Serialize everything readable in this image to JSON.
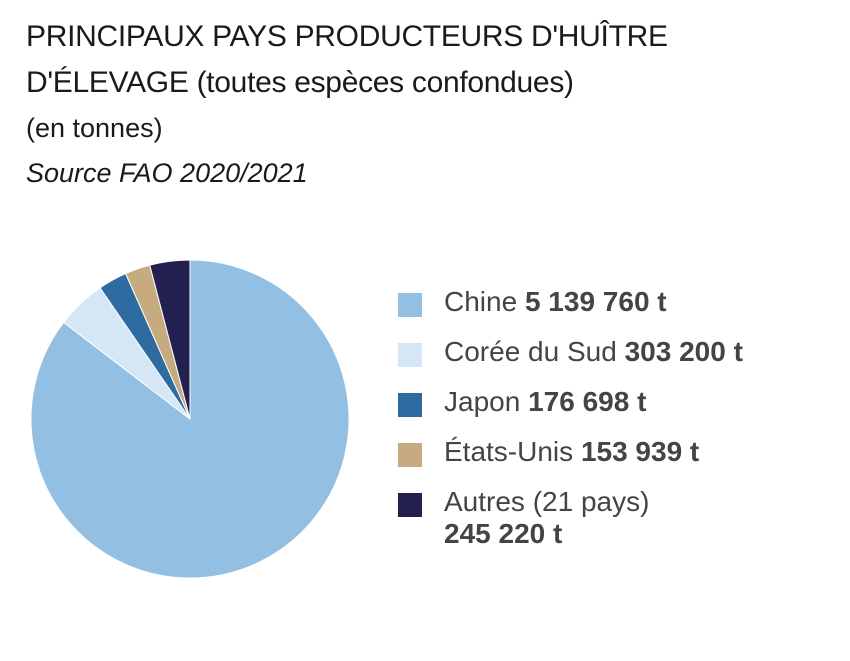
{
  "header": {
    "title_line1": "PRINCIPAUX PAYS PRODUCTEURS D'HUÎTRE",
    "title_line2": "D'ÉLEVAGE (toutes espèces confondues)",
    "unit": "(en tonnes)",
    "source": "Source FAO 2020/2021"
  },
  "chart_data": {
    "type": "pie",
    "title": "PRINCIPAUX PAYS PRODUCTEURS D'HUÎTRE D'ÉLEVAGE (toutes espèces confondues)",
    "unit": "(en tonnes)",
    "legend_position": "right",
    "slices": [
      {
        "label": "Chine",
        "value": 5139760,
        "value_label": "5 139 760 t",
        "color": "#92bfe2"
      },
      {
        "label": "Corée du Sud",
        "value": 303200,
        "value_label": "303 200 t",
        "color": "#d5e6f6"
      },
      {
        "label": "Japon",
        "value": 176698,
        "value_label": "176 698 t",
        "color": "#2e6ba0"
      },
      {
        "label": "États-Unis",
        "value": 153939,
        "value_label": "153 939 t",
        "color": "#c6aa80"
      },
      {
        "label": "Autres (21 pays)",
        "value": 245220,
        "value_label": "245 220 t",
        "color": "#232050"
      }
    ]
  }
}
